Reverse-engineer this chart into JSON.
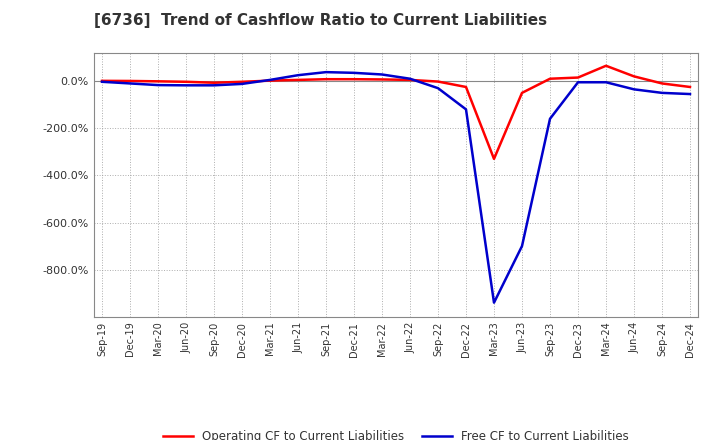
{
  "title": "[6736]  Trend of Cashflow Ratio to Current Liabilities",
  "xlabel_ticks": [
    "Sep-19",
    "Dec-19",
    "Mar-20",
    "Jun-20",
    "Sep-20",
    "Dec-20",
    "Mar-21",
    "Jun-21",
    "Sep-21",
    "Dec-21",
    "Mar-22",
    "Jun-22",
    "Sep-22",
    "Dec-22",
    "Mar-23",
    "Jun-23",
    "Sep-23",
    "Dec-23",
    "Mar-24",
    "Jun-24",
    "Sep-24",
    "Dec-24"
  ],
  "operating_cf": [
    1.0,
    0.5,
    -1.0,
    -3.0,
    -7.0,
    -3.0,
    2.0,
    5.0,
    8.0,
    8.0,
    7.0,
    5.0,
    -2.0,
    -25.0,
    -330.0,
    -50.0,
    10.0,
    15.0,
    65.0,
    20.0,
    -10.0,
    -25.0
  ],
  "free_cf": [
    -3.0,
    -10.0,
    -17.0,
    -18.0,
    -18.0,
    -12.0,
    5.0,
    25.0,
    38.0,
    35.0,
    28.0,
    10.0,
    -30.0,
    -120.0,
    -940.0,
    -700.0,
    -160.0,
    -5.0,
    -5.0,
    -35.0,
    -50.0,
    -55.0
  ],
  "operating_color": "#ff0000",
  "free_color": "#0000cc",
  "background_color": "#ffffff",
  "plot_bg_color": "#ffffff",
  "grid_color": "#999999",
  "ylim": [
    -1000,
    120
  ],
  "yticks": [
    0,
    -200,
    -400,
    -600,
    -800
  ],
  "title_fontsize": 11,
  "legend_labels": [
    "Operating CF to Current Liabilities",
    "Free CF to Current Liabilities"
  ]
}
